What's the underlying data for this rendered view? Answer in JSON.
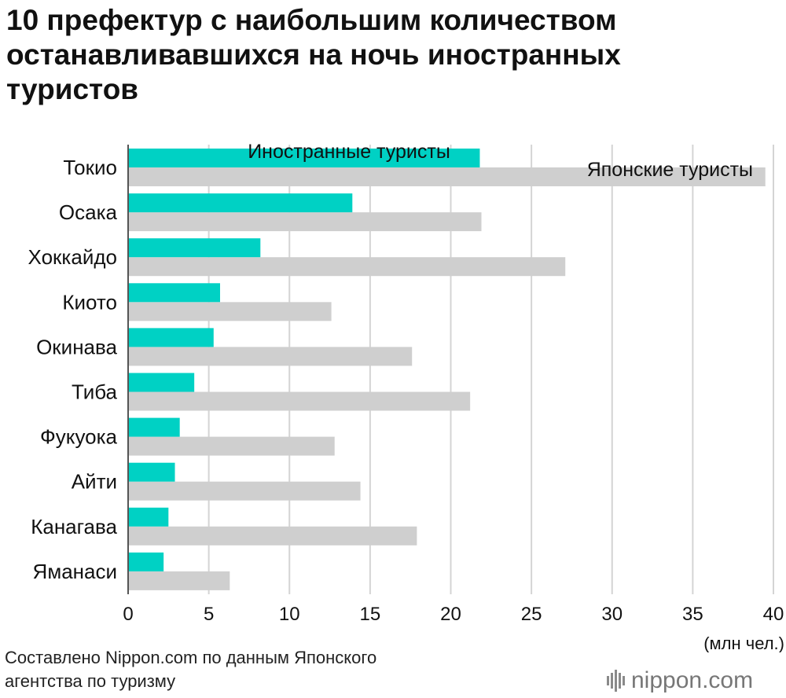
{
  "title_lines": [
    "10 префектур с наибольшим количеством",
    "останавливавшихся на ночь иностранных",
    "туристов"
  ],
  "source_lines": [
    "Составлено Nippon.com по данным Японского",
    "агентства по туризму"
  ],
  "logo_text": "nippon.com",
  "logo_icon": "nippon-bars-icon",
  "colors": {
    "foreign": "#00d1c4",
    "japanese": "#cfcfcf",
    "grid": "#d4d4d4",
    "axis": "#555555"
  },
  "chart_data": {
    "type": "bar",
    "orientation": "horizontal",
    "categories": [
      "Токио",
      "Осака",
      "Хоккайдо",
      "Киото",
      "Окинава",
      "Тиба",
      "Фукуока",
      "Айти",
      "Канагава",
      "Яманаси"
    ],
    "series": [
      {
        "name": "Иностранные туристы",
        "values": [
          21.8,
          13.9,
          8.2,
          5.7,
          5.3,
          4.1,
          3.2,
          2.9,
          2.5,
          2.2
        ]
      },
      {
        "name": "Японские туристы",
        "values": [
          39.5,
          21.9,
          27.1,
          12.6,
          17.6,
          21.2,
          12.8,
          14.4,
          17.9,
          6.3
        ]
      }
    ],
    "xticks": [
      "0",
      "5",
      "10",
      "15",
      "20",
      "25",
      "30",
      "35",
      "40"
    ],
    "xlim": [
      0,
      40
    ],
    "unit_label": "(млн чел.)",
    "grid": true
  }
}
